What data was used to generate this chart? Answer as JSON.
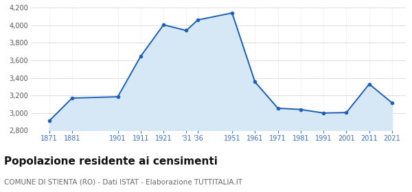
{
  "years": [
    1871,
    1881,
    1901,
    1911,
    1921,
    1931,
    1936,
    1951,
    1961,
    1971,
    1981,
    1991,
    2001,
    2011,
    2021
  ],
  "population": [
    2910,
    3170,
    3185,
    3645,
    4005,
    3940,
    4060,
    4140,
    3355,
    3055,
    3040,
    3000,
    3005,
    3330,
    3115
  ],
  "ylim": [
    2800,
    4200
  ],
  "yticks": [
    2800,
    3000,
    3200,
    3400,
    3600,
    3800,
    4000,
    4200
  ],
  "xlim_min": 1863,
  "xlim_max": 2027,
  "x_tick_positions": [
    1871,
    1881,
    1901,
    1911,
    1921,
    1931,
    1936,
    1951,
    1961,
    1971,
    1981,
    1991,
    2001,
    2011,
    2021
  ],
  "x_tick_labels": [
    "1871",
    "1881",
    "1901",
    "1911",
    "1921",
    "'31",
    "'36",
    "1951",
    "1961",
    "1971",
    "1981",
    "1991",
    "2001",
    "2011",
    "2021"
  ],
  "line_color": "#1a5eb8",
  "fill_color": "#d6e8f5",
  "marker_color": "#1a5eb8",
  "grid_color": "#d0d0d0",
  "bg_color": "#ffffff",
  "title": "Popolazione residente ai censimenti",
  "subtitle": "COMUNE DI STIENTA (RO) - Dati ISTAT - Elaborazione TUTTITALIA.IT",
  "title_fontsize": 11,
  "subtitle_fontsize": 7.5,
  "xtick_fontsize": 7,
  "ytick_fontsize": 7,
  "xtick_color": "#3a6bbf",
  "ytick_color": "#555555"
}
